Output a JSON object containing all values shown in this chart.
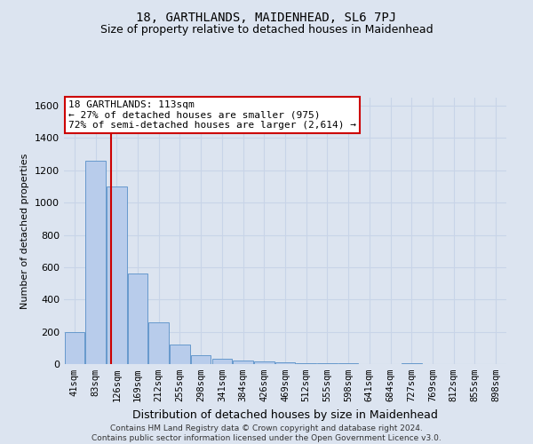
{
  "title": "18, GARTHLANDS, MAIDENHEAD, SL6 7PJ",
  "subtitle": "Size of property relative to detached houses in Maidenhead",
  "xlabel": "Distribution of detached houses by size in Maidenhead",
  "ylabel": "Number of detached properties",
  "footer_line1": "Contains HM Land Registry data © Crown copyright and database right 2024.",
  "footer_line2": "Contains public sector information licensed under the Open Government Licence v3.0.",
  "bin_labels": [
    "41sqm",
    "83sqm",
    "126sqm",
    "169sqm",
    "212sqm",
    "255sqm",
    "298sqm",
    "341sqm",
    "384sqm",
    "426sqm",
    "469sqm",
    "512sqm",
    "555sqm",
    "598sqm",
    "641sqm",
    "684sqm",
    "727sqm",
    "769sqm",
    "812sqm",
    "855sqm",
    "898sqm"
  ],
  "bar_heights": [
    200,
    1260,
    1100,
    560,
    260,
    120,
    55,
    35,
    20,
    15,
    10,
    8,
    5,
    5,
    0,
    0,
    5,
    0,
    0,
    0,
    0
  ],
  "bar_color": "#b8cceb",
  "bar_edge_color": "#6699cc",
  "red_line_x": 1.72,
  "annotation_text_line1": "18 GARTHLANDS: 113sqm",
  "annotation_text_line2": "← 27% of detached houses are smaller (975)",
  "annotation_text_line3": "72% of semi-detached houses are larger (2,614) →",
  "annotation_box_color": "#ffffff",
  "annotation_box_edge_color": "#cc0000",
  "red_line_color": "#cc0000",
  "ylim": [
    0,
    1650
  ],
  "yticks": [
    0,
    200,
    400,
    600,
    800,
    1000,
    1200,
    1400,
    1600
  ],
  "grid_color": "#c8d4e8",
  "background_color": "#dce4f0",
  "plot_background_color": "#dce4f0",
  "title_fontsize": 10,
  "subtitle_fontsize": 9,
  "ylabel_fontsize": 8,
  "xlabel_fontsize": 9,
  "tick_fontsize": 8,
  "xtick_fontsize": 7.5,
  "footer_fontsize": 6.5,
  "annotation_fontsize": 8
}
